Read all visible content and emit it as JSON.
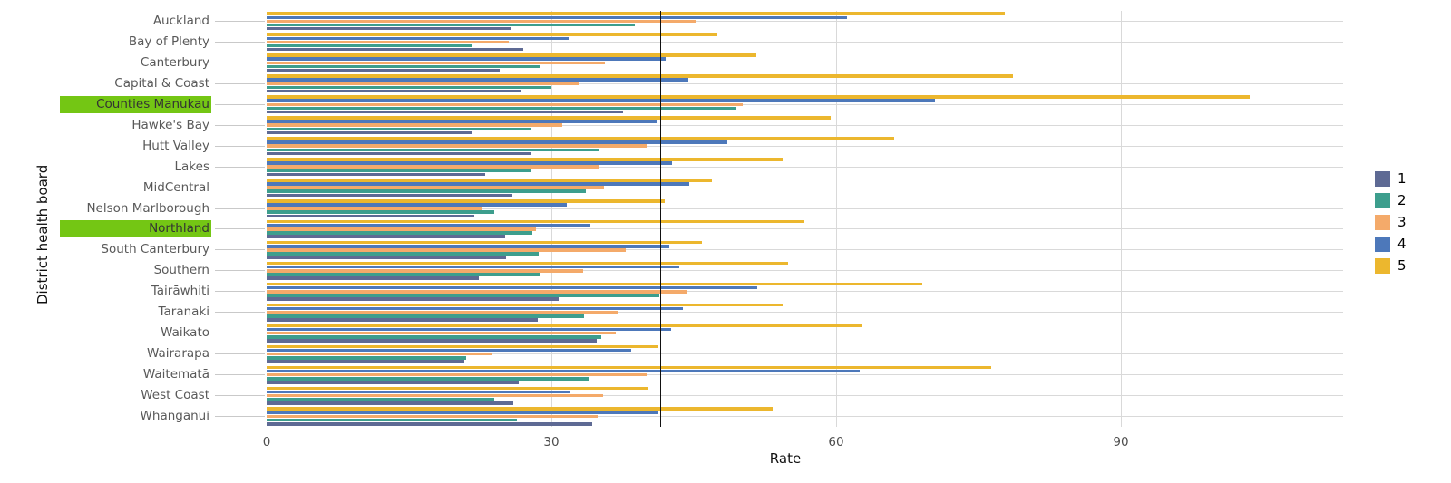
{
  "chart_data": {
    "type": "bar",
    "orientation": "horizontal",
    "xlabel": "Rate",
    "ylabel": "District health board",
    "x_ticks": [
      0,
      30,
      60,
      90
    ],
    "xlim": [
      0,
      113.4
    ],
    "grid": true,
    "legend_position": "right",
    "reference_line_x": 41.5,
    "reference_line_color": "#111111",
    "highlighted_categories": [
      "Counties Manukau",
      "Northland"
    ],
    "highlight_color": "#74c614",
    "categories": [
      "Auckland",
      "Bay of Plenty",
      "Canterbury",
      "Capital & Coast",
      "Counties Manukau",
      "Hawke's Bay",
      "Hutt Valley",
      "Lakes",
      "MidCentral",
      "Nelson Marlborough",
      "Northland",
      "South Canterbury",
      "Southern",
      "Tairāwhiti",
      "Taranaki",
      "Waikato",
      "Wairarapa",
      "Waitematā",
      "West Coast",
      "Whanganui"
    ],
    "series": [
      {
        "name": "1",
        "color": "#5e6a94",
        "values": [
          25.7,
          27.0,
          24.6,
          26.8,
          37.5,
          21.6,
          27.8,
          23.0,
          25.9,
          21.9,
          25.1,
          25.2,
          22.4,
          30.8,
          28.6,
          34.8,
          20.8,
          26.6,
          26.0,
          34.3
        ]
      },
      {
        "name": "2",
        "color": "#3d9e8d",
        "values": [
          38.8,
          21.6,
          28.8,
          30.0,
          49.5,
          27.9,
          35.0,
          27.9,
          33.6,
          24.0,
          28.0,
          28.7,
          28.8,
          41.4,
          33.4,
          35.3,
          21.0,
          34.0,
          24.0,
          26.4
        ]
      },
      {
        "name": "3",
        "color": "#f4aa6a",
        "values": [
          45.3,
          25.5,
          35.6,
          32.9,
          50.2,
          31.1,
          40.0,
          35.1,
          35.5,
          22.6,
          28.4,
          37.8,
          33.3,
          44.2,
          37.0,
          36.8,
          23.7,
          40.0,
          35.4,
          34.9
        ]
      },
      {
        "name": "4",
        "color": "#4d78ba",
        "values": [
          61.1,
          31.8,
          42.0,
          44.4,
          70.4,
          41.2,
          48.5,
          42.7,
          44.5,
          31.6,
          34.1,
          42.4,
          43.5,
          51.7,
          43.9,
          42.6,
          38.4,
          62.5,
          31.9,
          41.3
        ]
      },
      {
        "name": "5",
        "color": "#ecb72e",
        "values": [
          77.8,
          47.5,
          51.6,
          78.6,
          103.6,
          59.4,
          66.1,
          54.4,
          46.9,
          41.9,
          56.7,
          45.9,
          54.9,
          69.1,
          54.4,
          62.7,
          41.3,
          76.3,
          40.1,
          53.3
        ]
      }
    ]
  }
}
